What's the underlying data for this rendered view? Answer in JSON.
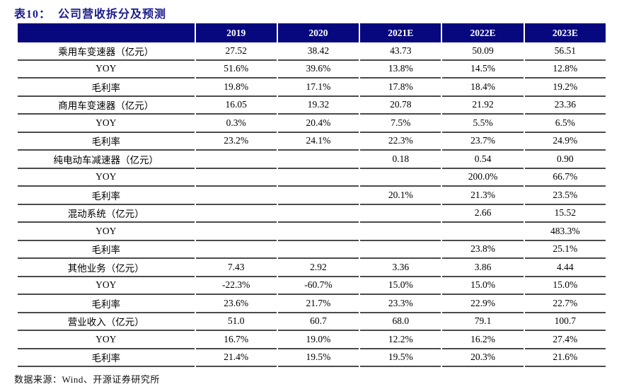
{
  "title": "表10：  公司营收拆分及预测",
  "source_note": "数据来源：Wind、开源证券研究所",
  "colors": {
    "header_bg": "#07077E",
    "header_text": "#FFFFFF",
    "title_text": "#1B1B8E",
    "row_border": "#4B4B4B"
  },
  "table": {
    "columns": [
      "",
      "2019",
      "2020",
      "2021E",
      "2022E",
      "2023E"
    ],
    "rows": [
      {
        "label": "乘用车变速器（亿元）",
        "values": [
          "27.52",
          "38.42",
          "43.73",
          "50.09",
          "56.51"
        ]
      },
      {
        "label": "YOY",
        "values": [
          "51.6%",
          "39.6%",
          "13.8%",
          "14.5%",
          "12.8%"
        ]
      },
      {
        "label": "毛利率",
        "values": [
          "19.8%",
          "17.1%",
          "17.8%",
          "18.4%",
          "19.2%"
        ]
      },
      {
        "label": "商用车变速器（亿元）",
        "values": [
          "16.05",
          "19.32",
          "20.78",
          "21.92",
          "23.36"
        ]
      },
      {
        "label": "YOY",
        "values": [
          "0.3%",
          "20.4%",
          "7.5%",
          "5.5%",
          "6.5%"
        ]
      },
      {
        "label": "毛利率",
        "values": [
          "23.2%",
          "24.1%",
          "22.3%",
          "23.7%",
          "24.9%"
        ]
      },
      {
        "label": "纯电动车减速器（亿元）",
        "values": [
          "",
          "",
          "0.18",
          "0.54",
          "0.90"
        ]
      },
      {
        "label": "YOY",
        "values": [
          "",
          "",
          "",
          "200.0%",
          "66.7%"
        ]
      },
      {
        "label": "毛利率",
        "values": [
          "",
          "",
          "20.1%",
          "21.3%",
          "23.5%"
        ]
      },
      {
        "label": "混动系统（亿元）",
        "values": [
          "",
          "",
          "",
          "2.66",
          "15.52"
        ]
      },
      {
        "label": "YOY",
        "values": [
          "",
          "",
          "",
          "",
          "483.3%"
        ]
      },
      {
        "label": "毛利率",
        "values": [
          "",
          "",
          "",
          "23.8%",
          "25.1%"
        ]
      },
      {
        "label": "其他业务（亿元）",
        "values": [
          "7.43",
          "2.92",
          "3.36",
          "3.86",
          "4.44"
        ]
      },
      {
        "label": "YOY",
        "values": [
          "-22.3%",
          "-60.7%",
          "15.0%",
          "15.0%",
          "15.0%"
        ]
      },
      {
        "label": "毛利率",
        "values": [
          "23.6%",
          "21.7%",
          "23.3%",
          "22.9%",
          "22.7%"
        ]
      },
      {
        "label": "营业收入（亿元）",
        "values": [
          "51.0",
          "60.7",
          "68.0",
          "79.1",
          "100.7"
        ]
      },
      {
        "label": "YOY",
        "values": [
          "16.7%",
          "19.0%",
          "12.2%",
          "16.2%",
          "27.4%"
        ]
      },
      {
        "label": "毛利率",
        "values": [
          "21.4%",
          "19.5%",
          "19.5%",
          "20.3%",
          "21.6%"
        ]
      }
    ]
  }
}
